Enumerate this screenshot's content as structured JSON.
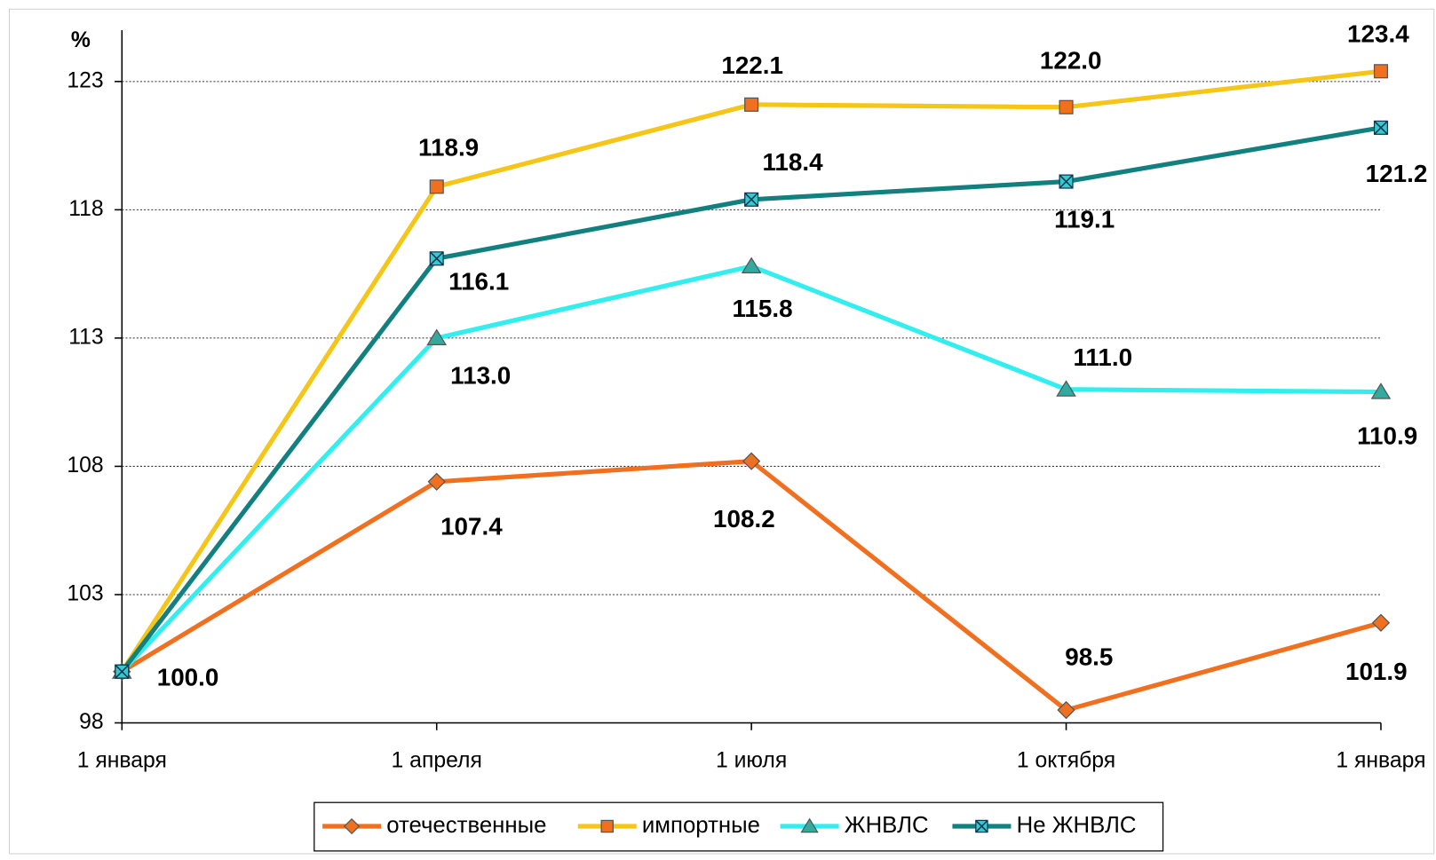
{
  "chart_data": {
    "type": "line",
    "y_label": "%",
    "categories": [
      "1 января",
      "1 апреля",
      "1 июля",
      "1 октября",
      "1 января"
    ],
    "ylim": [
      98,
      125
    ],
    "yticks": [
      98,
      103,
      108,
      113,
      118,
      123
    ],
    "grid": true,
    "legend": "bottom",
    "series": [
      {
        "name": "отечественные",
        "color": "#f07020",
        "marker": "diamond",
        "marker_color": "#f07020",
        "values": [
          100,
          107.4,
          108.2,
          98.5,
          101.9
        ],
        "value_labels": [
          "100.0",
          "107.4",
          "108.2",
          "98.5",
          "101.9"
        ]
      },
      {
        "name": "импортные",
        "color": "#f5c518",
        "marker": "square",
        "marker_color": "#f07020",
        "values": [
          100,
          118.9,
          122.1,
          122.0,
          123.4
        ],
        "value_labels": [
          null,
          "118.9",
          "122.1",
          "122.0",
          "123.4"
        ]
      },
      {
        "name": "ЖНВЛС",
        "color": "#33eeee",
        "marker": "triangle",
        "marker_color": "#33aaa0",
        "values": [
          100,
          113.0,
          115.8,
          111.0,
          110.9
        ],
        "value_labels": [
          null,
          "113.0",
          "115.8",
          "111.0",
          "110.9"
        ]
      },
      {
        "name": "Не ЖНВЛС",
        "color": "#138080",
        "marker": "xsquare",
        "marker_color": "#33cccc",
        "values": [
          100,
          116.1,
          118.4,
          119.1,
          121.2
        ],
        "value_labels": [
          null,
          "116.1",
          "118.4",
          "119.1",
          "121.2"
        ]
      }
    ]
  }
}
